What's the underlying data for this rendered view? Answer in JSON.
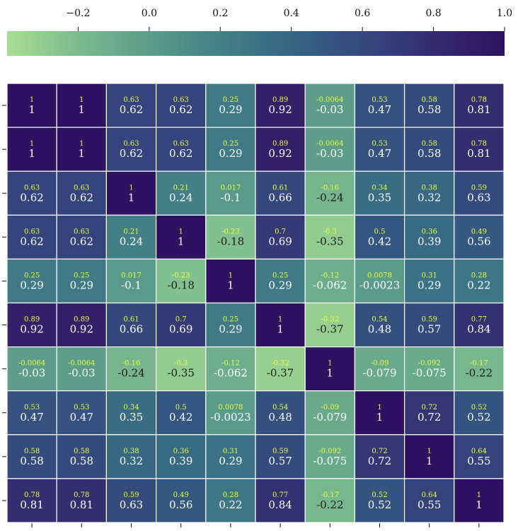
{
  "chart_data": {
    "type": "heatmap",
    "title": "",
    "xlabel": "",
    "ylabel": "",
    "colorbar": {
      "orientation": "horizontal",
      "position": "top",
      "ticks": [
        "−0.2",
        "0.0",
        "0.2",
        "0.4",
        "0.6",
        "0.8",
        "1.0"
      ],
      "tick_values": [
        -0.2,
        0.0,
        0.2,
        0.4,
        0.6,
        0.8,
        1.0
      ],
      "range": [
        -0.4,
        1.0
      ],
      "colors": [
        "#a8dd93",
        "#82bf8f",
        "#63a38b",
        "#4a8b88",
        "#3b7385",
        "#355a82",
        "#35417b",
        "#34286d",
        "#2e1261"
      ]
    },
    "top_values": [
      [
        "1",
        "1",
        "0.63",
        "0.63",
        "0.25",
        "0.89",
        "-0.0064",
        "0.53",
        "0.58",
        "0.78"
      ],
      [
        "1",
        "1",
        "0.63",
        "0.63",
        "0.25",
        "0.89",
        "-0.0064",
        "0.53",
        "0.58",
        "0.78"
      ],
      [
        "0.63",
        "0.63",
        "1",
        "0.21",
        "0.017",
        "0.61",
        "-0.16",
        "0.34",
        "0.38",
        "0.59"
      ],
      [
        "0.63",
        "0.63",
        "0.21",
        "1",
        "-0.23",
        "0.7",
        "-0.3",
        "0.5",
        "0.36",
        "0.49"
      ],
      [
        "0.25",
        "0.25",
        "0.017",
        "-0.23",
        "1",
        "0.25",
        "-0.12",
        "0.0078",
        "0.31",
        "0.28"
      ],
      [
        "0.89",
        "0.89",
        "0.61",
        "0.7",
        "0.25",
        "1",
        "-0.32",
        "0.54",
        "0.59",
        "0.77"
      ],
      [
        "-0.0064",
        "-0.0064",
        "-0.16",
        "-0.3",
        "-0.12",
        "-0.32",
        "1",
        "-0.09",
        "-0.092",
        "-0.17"
      ],
      [
        "0.53",
        "0.53",
        "0.34",
        "0.5",
        "0.0078",
        "0.54",
        "-0.09",
        "1",
        "0.72",
        "0.52"
      ],
      [
        "0.58",
        "0.58",
        "0.38",
        "0.36",
        "0.31",
        "0.59",
        "-0.092",
        "0.72",
        "1",
        "0.64"
      ],
      [
        "0.78",
        "0.78",
        "0.59",
        "0.49",
        "0.28",
        "0.77",
        "-0.17",
        "0.52",
        "0.64",
        "1"
      ]
    ],
    "bottom_values": [
      [
        "1",
        "1",
        "0.62",
        "0.62",
        "0.29",
        "0.92",
        "-0.03",
        "0.47",
        "0.58",
        "0.81"
      ],
      [
        "1",
        "1",
        "0.62",
        "0.62",
        "0.29",
        "0.92",
        "-0.03",
        "0.47",
        "0.58",
        "0.81"
      ],
      [
        "0.62",
        "0.62",
        "1",
        "0.24",
        "-0.1",
        "0.66",
        "-0.24",
        "0.35",
        "0.32",
        "0.63"
      ],
      [
        "0.62",
        "0.62",
        "0.24",
        "1",
        "-0.18",
        "0.69",
        "-0.35",
        "0.42",
        "0.39",
        "0.56"
      ],
      [
        "0.29",
        "0.29",
        "-0.1",
        "-0.18",
        "1",
        "0.29",
        "-0.062",
        "-0.0023",
        "0.29",
        "0.22"
      ],
      [
        "0.92",
        "0.92",
        "0.66",
        "0.69",
        "0.29",
        "1",
        "-0.37",
        "0.48",
        "0.57",
        "0.84"
      ],
      [
        "-0.03",
        "-0.03",
        "-0.24",
        "-0.35",
        "-0.062",
        "-0.37",
        "1",
        "-0.079",
        "-0.075",
        "-0.22"
      ],
      [
        "0.47",
        "0.47",
        "0.35",
        "0.42",
        "-0.0023",
        "0.48",
        "-0.079",
        "1",
        "0.72",
        "0.52"
      ],
      [
        "0.58",
        "0.58",
        "0.32",
        "0.39",
        "0.29",
        "0.57",
        "-0.075",
        "0.72",
        "1",
        "0.55"
      ],
      [
        "0.81",
        "0.81",
        "0.63",
        "0.56",
        "0.22",
        "0.84",
        "-0.22",
        "0.52",
        "0.55",
        "1"
      ]
    ],
    "x_tick_labels": [
      "",
      "",
      "",
      "",
      "",
      "",
      "",
      "",
      "",
      ""
    ],
    "y_tick_labels": [
      "",
      "",
      "",
      "",
      "",
      "",
      "",
      "",
      "",
      ""
    ],
    "grid": false,
    "legend": "none",
    "annotation_colors": {
      "top": "#e8ff3a",
      "bottom_light": "#ffffff",
      "bottom_dark": "#1a1a1a"
    }
  }
}
